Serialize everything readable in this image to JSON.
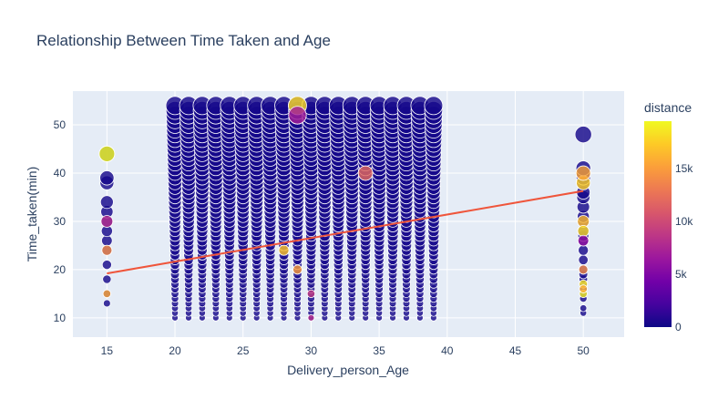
{
  "chart_data": {
    "type": "scatter",
    "title": "Relationship Between Time Taken and Age",
    "xlabel": "Delivery_person_Age",
    "ylabel": "Time_taken(min)",
    "xlim": [
      12.5,
      53
    ],
    "ylim": [
      6,
      57
    ],
    "x_ticks": [
      15,
      20,
      25,
      30,
      35,
      40,
      45,
      50
    ],
    "y_ticks": [
      10,
      20,
      30,
      40,
      50
    ],
    "grid": true,
    "plot_background": "#e5ecf6",
    "colorbar": {
      "title": "distance",
      "range": [
        0,
        19500
      ],
      "ticks": [
        {
          "value": 0,
          "label": "0"
        },
        {
          "value": 5000,
          "label": "5k"
        },
        {
          "value": 10000,
          "label": "10k"
        },
        {
          "value": 15000,
          "label": "15k"
        }
      ],
      "colorscale": [
        "#0d0887",
        "#46039f",
        "#7201a8",
        "#9c179e",
        "#bd3786",
        "#d8576b",
        "#ed7953",
        "#fb9f3a",
        "#fdca26",
        "#f0f921"
      ]
    },
    "trendline": {
      "x": [
        15,
        50
      ],
      "y": [
        19.2,
        36.3
      ],
      "color": "#ef553b"
    },
    "columns": [
      {
        "x": 15,
        "times": [
          13,
          15,
          18,
          21,
          24,
          26,
          28,
          30,
          32,
          34,
          38,
          39,
          44
        ]
      },
      {
        "x": 20,
        "from": 10,
        "to": 54
      },
      {
        "x": 21,
        "from": 10,
        "to": 54
      },
      {
        "x": 22,
        "from": 10,
        "to": 54
      },
      {
        "x": 23,
        "from": 10,
        "to": 54
      },
      {
        "x": 24,
        "from": 10,
        "to": 54
      },
      {
        "x": 25,
        "from": 10,
        "to": 54
      },
      {
        "x": 26,
        "from": 10,
        "to": 54
      },
      {
        "x": 27,
        "from": 10,
        "to": 54
      },
      {
        "x": 28,
        "from": 10,
        "to": 54
      },
      {
        "x": 29,
        "from": 10,
        "to": 54
      },
      {
        "x": 30,
        "from": 10,
        "to": 54
      },
      {
        "x": 31,
        "from": 10,
        "to": 54
      },
      {
        "x": 32,
        "from": 10,
        "to": 54
      },
      {
        "x": 33,
        "from": 10,
        "to": 54
      },
      {
        "x": 34,
        "from": 10,
        "to": 54
      },
      {
        "x": 35,
        "from": 10,
        "to": 54
      },
      {
        "x": 36,
        "from": 10,
        "to": 54
      },
      {
        "x": 37,
        "from": 10,
        "to": 54
      },
      {
        "x": 38,
        "from": 10,
        "to": 54
      },
      {
        "x": 39,
        "from": 10,
        "to": 54
      },
      {
        "x": 50,
        "times": [
          11,
          12,
          14,
          15,
          16,
          17,
          18,
          19,
          20,
          22,
          24,
          26,
          27,
          28,
          30,
          31,
          33,
          35,
          36,
          38,
          39,
          40,
          41,
          48
        ]
      }
    ],
    "highlights": [
      {
        "x": 15,
        "y": 44,
        "distance": 19500
      },
      {
        "x": 15,
        "y": 15,
        "distance": 15500
      },
      {
        "x": 15,
        "y": 24,
        "distance": 14000
      },
      {
        "x": 15,
        "y": 30,
        "distance": 8000
      },
      {
        "x": 29,
        "y": 54,
        "distance": 18000
      },
      {
        "x": 29,
        "y": 52,
        "distance": 7000
      },
      {
        "x": 28,
        "y": 24,
        "distance": 17000
      },
      {
        "x": 29,
        "y": 20,
        "distance": 15000
      },
      {
        "x": 30,
        "y": 10,
        "distance": 8000
      },
      {
        "x": 30,
        "y": 15,
        "distance": 9000
      },
      {
        "x": 34,
        "y": 40,
        "distance": 12000
      },
      {
        "x": 50,
        "y": 38,
        "distance": 17500
      },
      {
        "x": 50,
        "y": 40,
        "distance": 15500
      },
      {
        "x": 50,
        "y": 30,
        "distance": 16500
      },
      {
        "x": 50,
        "y": 28,
        "distance": 18000
      },
      {
        "x": 50,
        "y": 26,
        "distance": 6000
      },
      {
        "x": 50,
        "y": 20,
        "distance": 14000
      },
      {
        "x": 50,
        "y": 17,
        "distance": 18500
      },
      {
        "x": 50,
        "y": 15,
        "distance": 19000
      },
      {
        "x": 50,
        "y": 16,
        "distance": 16000
      }
    ]
  }
}
